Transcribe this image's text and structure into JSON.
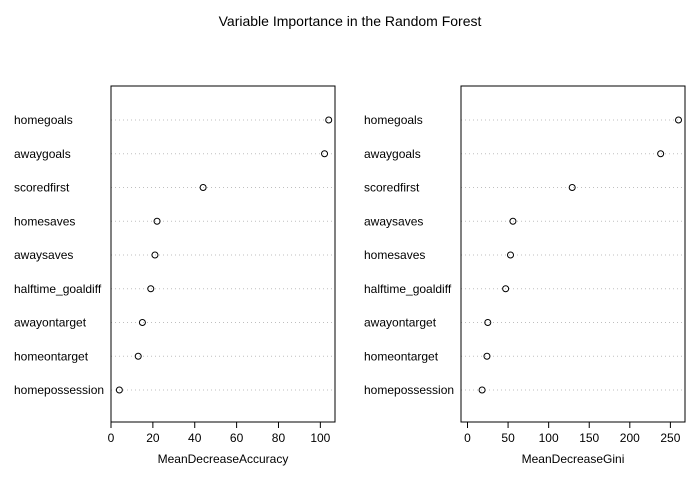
{
  "title": "Variable Importance in the Random Forest",
  "colors": {
    "point_stroke": "#000000",
    "grid": "#bfbfbf",
    "frame": "#000000"
  },
  "chart_data": [
    {
      "type": "scatter",
      "style": "dotchart",
      "xlabel": "MeanDecreaseAccuracy",
      "xlim": [
        0,
        107
      ],
      "xticks": [
        0,
        20,
        40,
        60,
        80,
        100
      ],
      "grid": "dotted horizontal",
      "categories": [
        "homegoals",
        "awaygoals",
        "scoredfirst",
        "homesaves",
        "awaysaves",
        "halftime_goaldiff",
        "awayontarget",
        "homeontarget",
        "homepossession"
      ],
      "values": [
        104,
        102,
        44,
        22,
        21,
        19,
        15,
        13,
        4
      ]
    },
    {
      "type": "scatter",
      "style": "dotchart",
      "xlabel": "MeanDecreaseGini",
      "xlim": [
        -8,
        268
      ],
      "xticks": [
        0,
        50,
        100,
        150,
        200,
        250
      ],
      "grid": "dotted horizontal",
      "categories": [
        "homegoals",
        "awaygoals",
        "scoredfirst",
        "awaysaves",
        "homesaves",
        "halftime_goaldiff",
        "awayontarget",
        "homeontarget",
        "homepossession"
      ],
      "values": [
        260,
        238,
        129,
        56,
        53,
        47,
        25,
        24,
        18
      ]
    }
  ]
}
